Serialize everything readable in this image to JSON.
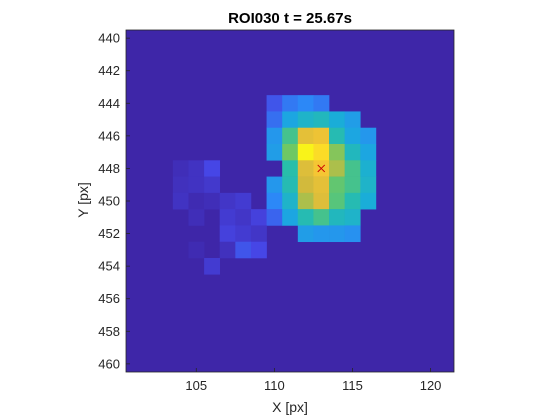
{
  "chart_data": {
    "type": "heatmap",
    "title": "ROI030 t = 25.67s",
    "xlabel": "X [px]",
    "ylabel": "Y [px]",
    "xlim": [
      100.5,
      121.5
    ],
    "ylim": [
      439.5,
      460.5
    ],
    "y_reversed": true,
    "x_ticks": [
      105,
      110,
      115,
      120
    ],
    "y_ticks": [
      440,
      442,
      444,
      446,
      448,
      450,
      452,
      454,
      456,
      458,
      460
    ],
    "x_start": 101,
    "y_start": 440,
    "colormap": "parula",
    "background_color": "#3e26a8",
    "marker": {
      "x": 113,
      "y": 448,
      "symbol": "x",
      "color": "#cc0000"
    },
    "values": [
      [
        0,
        0,
        0,
        0,
        0,
        0,
        0,
        0,
        0,
        0,
        0,
        0,
        0,
        0,
        0,
        0,
        0,
        0,
        0,
        0,
        0
      ],
      [
        0,
        0,
        0,
        0,
        0,
        0,
        0,
        0,
        0,
        0,
        0,
        0,
        0,
        0,
        0,
        0,
        0,
        0,
        0,
        0,
        0
      ],
      [
        0,
        0,
        0,
        0,
        0,
        0,
        0,
        0,
        0,
        0,
        0,
        0,
        0,
        0,
        0,
        0,
        0,
        0,
        0,
        0,
        0
      ],
      [
        0,
        0,
        0,
        0,
        0,
        0,
        0,
        0,
        0,
        0,
        0,
        0,
        0,
        0,
        0,
        0,
        0,
        0,
        0,
        0,
        0
      ],
      [
        0,
        0,
        0,
        0,
        0,
        0,
        0,
        0,
        0,
        0.15,
        0.22,
        0.25,
        0.22,
        0,
        0,
        0,
        0,
        0,
        0,
        0,
        0
      ],
      [
        0,
        0,
        0,
        0,
        0,
        0,
        0,
        0,
        0,
        0.2,
        0.35,
        0.42,
        0.45,
        0.38,
        0.32,
        0,
        0,
        0,
        0,
        0,
        0
      ],
      [
        0,
        0,
        0,
        0,
        0,
        0,
        0,
        0,
        0,
        0.3,
        0.55,
        0.8,
        0.83,
        0.48,
        0.35,
        0.3,
        0,
        0,
        0,
        0,
        0
      ],
      [
        0,
        0,
        0,
        0,
        0,
        0,
        0,
        0,
        0,
        0.32,
        0.62,
        0.98,
        0.92,
        0.65,
        0.45,
        0.35,
        0,
        0,
        0,
        0,
        0
      ],
      [
        0,
        0,
        0,
        0.03,
        0.05,
        0.12,
        0,
        0,
        0,
        0,
        0.5,
        0.78,
        0.85,
        0.7,
        0.55,
        0.4,
        0,
        0,
        0,
        0,
        0
      ],
      [
        0,
        0,
        0,
        0.04,
        0.05,
        0.07,
        0,
        0,
        0,
        0.3,
        0.48,
        0.75,
        0.8,
        0.6,
        0.55,
        0.42,
        0,
        0,
        0,
        0,
        0
      ],
      [
        0,
        0,
        0,
        0.05,
        0.02,
        0.03,
        0.06,
        0.08,
        0,
        0.25,
        0.42,
        0.7,
        0.78,
        0.58,
        0.48,
        0.38,
        0,
        0,
        0,
        0,
        0
      ],
      [
        0,
        0,
        0,
        0,
        0.03,
        0,
        0.08,
        0.06,
        0.1,
        0.18,
        0.35,
        0.48,
        0.55,
        0.45,
        0.42,
        0,
        0,
        0,
        0,
        0,
        0
      ],
      [
        0,
        0,
        0,
        0,
        0,
        0,
        0.1,
        0.08,
        0.06,
        0,
        0,
        0.32,
        0.3,
        0.3,
        0.28,
        0,
        0,
        0,
        0,
        0,
        0
      ],
      [
        0,
        0,
        0,
        0,
        0.02,
        0,
        0.04,
        0.15,
        0.12,
        0,
        0,
        0,
        0,
        0,
        0,
        0,
        0,
        0,
        0,
        0,
        0
      ],
      [
        0,
        0,
        0,
        0,
        0,
        0.08,
        0,
        0,
        0,
        0,
        0,
        0,
        0,
        0,
        0,
        0,
        0,
        0,
        0,
        0,
        0
      ],
      [
        0,
        0,
        0,
        0,
        0,
        0,
        0,
        0,
        0,
        0,
        0,
        0,
        0,
        0,
        0,
        0,
        0,
        0,
        0,
        0,
        0
      ],
      [
        0,
        0,
        0,
        0,
        0,
        0,
        0,
        0,
        0,
        0,
        0,
        0,
        0,
        0,
        0,
        0,
        0,
        0,
        0,
        0,
        0
      ],
      [
        0,
        0,
        0,
        0,
        0,
        0,
        0,
        0,
        0,
        0,
        0,
        0,
        0,
        0,
        0,
        0,
        0,
        0,
        0,
        0,
        0
      ],
      [
        0,
        0,
        0,
        0,
        0,
        0,
        0,
        0,
        0,
        0,
        0,
        0,
        0,
        0,
        0,
        0,
        0,
        0,
        0,
        0,
        0
      ],
      [
        0,
        0,
        0,
        0,
        0,
        0,
        0,
        0,
        0,
        0,
        0,
        0,
        0,
        0,
        0,
        0,
        0,
        0,
        0,
        0,
        0
      ],
      [
        0,
        0,
        0,
        0,
        0,
        0,
        0,
        0,
        0,
        0,
        0,
        0,
        0,
        0,
        0,
        0,
        0,
        0,
        0,
        0,
        0
      ]
    ]
  }
}
